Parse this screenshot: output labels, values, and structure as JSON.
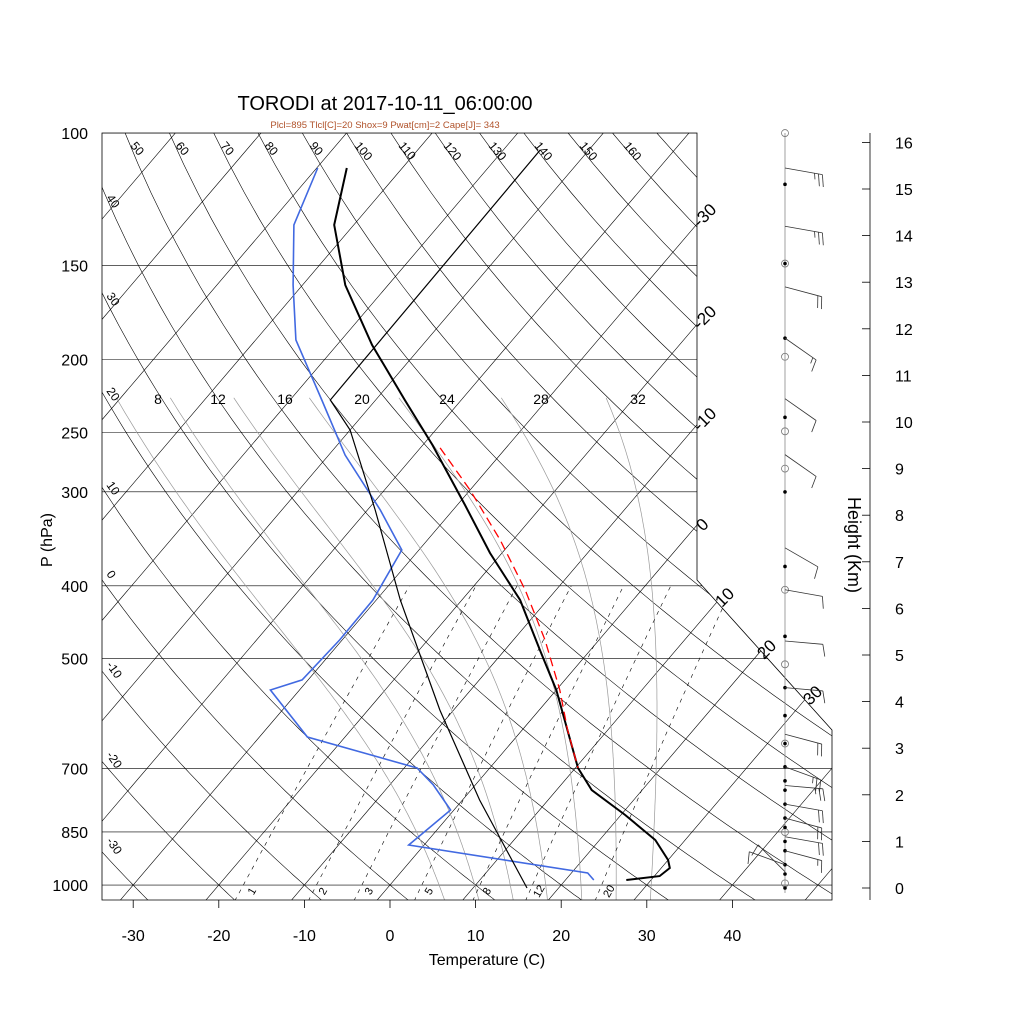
{
  "chart_data": {
    "type": "line",
    "subtype": "skew-t log-p",
    "title": "TORODI at 2017-10-11_06:00:00",
    "subtitle": "Plcl=895 Tlcl[C]=20 Shox=9 Pwat[cm]=2 Cape[J]= 343",
    "xlabel": "Temperature (C)",
    "ylabel": "P (hPa)",
    "y2label": "Height (Km)",
    "xlim": [
      -33,
      45
    ],
    "ylim": [
      1050,
      100
    ],
    "x_ticks": [
      -30,
      -20,
      -10,
      0,
      10,
      20,
      30,
      40
    ],
    "x_tick_labels": [
      "-30",
      "-20",
      "-10",
      "0",
      "10",
      "20",
      "30",
      "40"
    ],
    "pressure_levels": [
      100,
      150,
      200,
      250,
      300,
      400,
      500,
      700,
      850,
      1000
    ],
    "pressure_labels": [
      "100",
      "150",
      "200",
      "250",
      "300",
      "400",
      "500",
      "700",
      "850",
      "1000"
    ],
    "height_ticks_km": [
      0,
      1,
      2,
      3,
      4,
      5,
      6,
      7,
      8,
      9,
      10,
      11,
      12,
      13,
      14,
      15,
      16
    ],
    "height_tick_labels": [
      "0",
      "1",
      "2",
      "3",
      "4",
      "5",
      "6",
      "7",
      "8",
      "9",
      "10",
      "11",
      "12",
      "13",
      "14",
      "15",
      "16"
    ],
    "isotherm_labels": [
      "-30",
      "-20",
      "-10",
      "0",
      "10",
      "20",
      "30"
    ],
    "isotherm_label_values": [
      -30,
      -20,
      -10,
      0,
      10,
      20,
      30
    ],
    "dry_adiabat_top_labels": [
      "50",
      "60",
      "70",
      "80",
      "90",
      "100",
      "110",
      "120",
      "130",
      "140",
      "150",
      "160"
    ],
    "dry_adiabat_top_values": [
      50,
      60,
      70,
      80,
      90,
      100,
      110,
      120,
      130,
      140,
      150,
      160
    ],
    "dry_adiabat_left_labels": [
      "40",
      "30",
      "20",
      "10",
      "0",
      "-10",
      "-20",
      "-30"
    ],
    "dry_adiabat_left_values": [
      40,
      30,
      20,
      10,
      0,
      -10,
      -20,
      -30
    ],
    "moist_adiabat_labels": [
      "8",
      "12",
      "16",
      "20",
      "24",
      "28",
      "32"
    ],
    "moist_adiabat_values": [
      8,
      12,
      16,
      20,
      24,
      28,
      32
    ],
    "mixing_ratio_labels": [
      "1",
      "2",
      "3",
      "5",
      "8",
      "12",
      "20"
    ],
    "mixing_ratio_values": [
      1,
      2,
      3,
      5,
      8,
      12,
      20
    ],
    "series": [
      {
        "name": "temperature",
        "color": "#000000",
        "style": "solid-thick",
        "p": [
          111.3,
          132.5,
          159.3,
          191.4,
          226.5,
          259.9,
          312.4,
          361.8,
          417.8,
          487,
          550.4,
          641.5,
          698.8,
          747.6,
          806.9,
          871.1,
          926.3,
          949.3,
          972.9,
          984.6
        ],
        "t": [
          -76.5,
          -72.3,
          -65.0,
          -55.9,
          -46.6,
          -38.9,
          -29.1,
          -21.4,
          -13.2,
          -5.9,
          0.0,
          6.6,
          10.3,
          14.1,
          20.5,
          26.5,
          30.0,
          31.0,
          30.6,
          27.1
        ]
      },
      {
        "name": "dewpoint",
        "color": "#4169e1",
        "style": "solid",
        "p": [
          111.3,
          132.5,
          159.3,
          188.5,
          226.5,
          268,
          317.2,
          358.5,
          417.8,
          472.3,
          533.7,
          550.4,
          635.6,
          698.8,
          736.2,
          794.7,
          884.6,
          964,
          984.6
        ],
        "t": [
          -79.9,
          -77.0,
          -71.1,
          -65.3,
          -56.3,
          -48.1,
          -38.5,
          -32.0,
          -30.4,
          -30.3,
          -30.7,
          -33.4,
          -24.4,
          -8.5,
          -4.9,
          -0.4,
          -1.8,
          21.9,
          23.3
        ]
      },
      {
        "name": "parcel",
        "color": "#000000",
        "style": "solid-thin",
        "p": [
          1009,
          770.9,
          585.3,
          417.8,
          317.2,
          248.3,
          226.5,
          105.3
        ],
        "t": [
          16.3,
          2.0,
          -11.6,
          -27.2,
          -39.1,
          -50.0,
          -55.3,
          -55.7
        ]
      },
      {
        "name": "moist-parcel",
        "color": "#ff0000",
        "style": "dashed",
        "p": [
          262.3,
          298.4,
          347.7,
          405.2,
          472.3,
          550.4,
          622.1,
          698.8
        ],
        "t": [
          -37.7,
          -30.0,
          -21.5,
          -13.6,
          -6.3,
          0.4,
          5.3,
          10.3
        ]
      }
    ],
    "wind_barbs": [
      {
        "z_km": 15.45,
        "dir": 100,
        "kt": 25
      },
      {
        "z_km": 14.2,
        "dir": 100,
        "kt": 25
      },
      {
        "z_km": 12.9,
        "dir": 105,
        "kt": 20
      },
      {
        "z_km": 11.8,
        "dir": 125,
        "kt": 15
      },
      {
        "z_km": 10.5,
        "dir": 125,
        "kt": 10
      },
      {
        "z_km": 9.3,
        "dir": 125,
        "kt": 10
      },
      {
        "z_km": 7.3,
        "dir": 120,
        "kt": 10
      },
      {
        "z_km": 6.4,
        "dir": 100,
        "kt": 10
      },
      {
        "z_km": 5.3,
        "dir": 95,
        "kt": 10
      },
      {
        "z_km": 4.3,
        "dir": 95,
        "kt": 10
      },
      {
        "z_km": 3.3,
        "dir": 105,
        "kt": 20
      },
      {
        "z_km": 2.6,
        "dir": 110,
        "kt": 25
      },
      {
        "z_km": 2.2,
        "dir": 95,
        "kt": 25
      },
      {
        "z_km": 1.8,
        "dir": 100,
        "kt": 20
      },
      {
        "z_km": 1.5,
        "dir": 105,
        "kt": 20
      },
      {
        "z_km": 1.1,
        "dir": 100,
        "kt": 20
      },
      {
        "z_km": 0.8,
        "dir": 105,
        "kt": 15
      },
      {
        "z_km": 0.5,
        "dir": 290,
        "kt": 10
      },
      {
        "z_km": 0.35,
        "dir": 315,
        "kt": 10
      }
    ],
    "height_dots_km": [
      15.1,
      13.4,
      11.8,
      10.1,
      8.5,
      6.9,
      5.4,
      4.3,
      3.7,
      3.1,
      2.6,
      2.3,
      2.1,
      1.8,
      1.5,
      1.3,
      1.0,
      0.8,
      0.5,
      0.3,
      0.0
    ],
    "height_circles_km": [
      16.2,
      13.4,
      11.4,
      9.8,
      9.0,
      6.4,
      4.8,
      3.1,
      1.2,
      0.1
    ],
    "grid": true
  }
}
